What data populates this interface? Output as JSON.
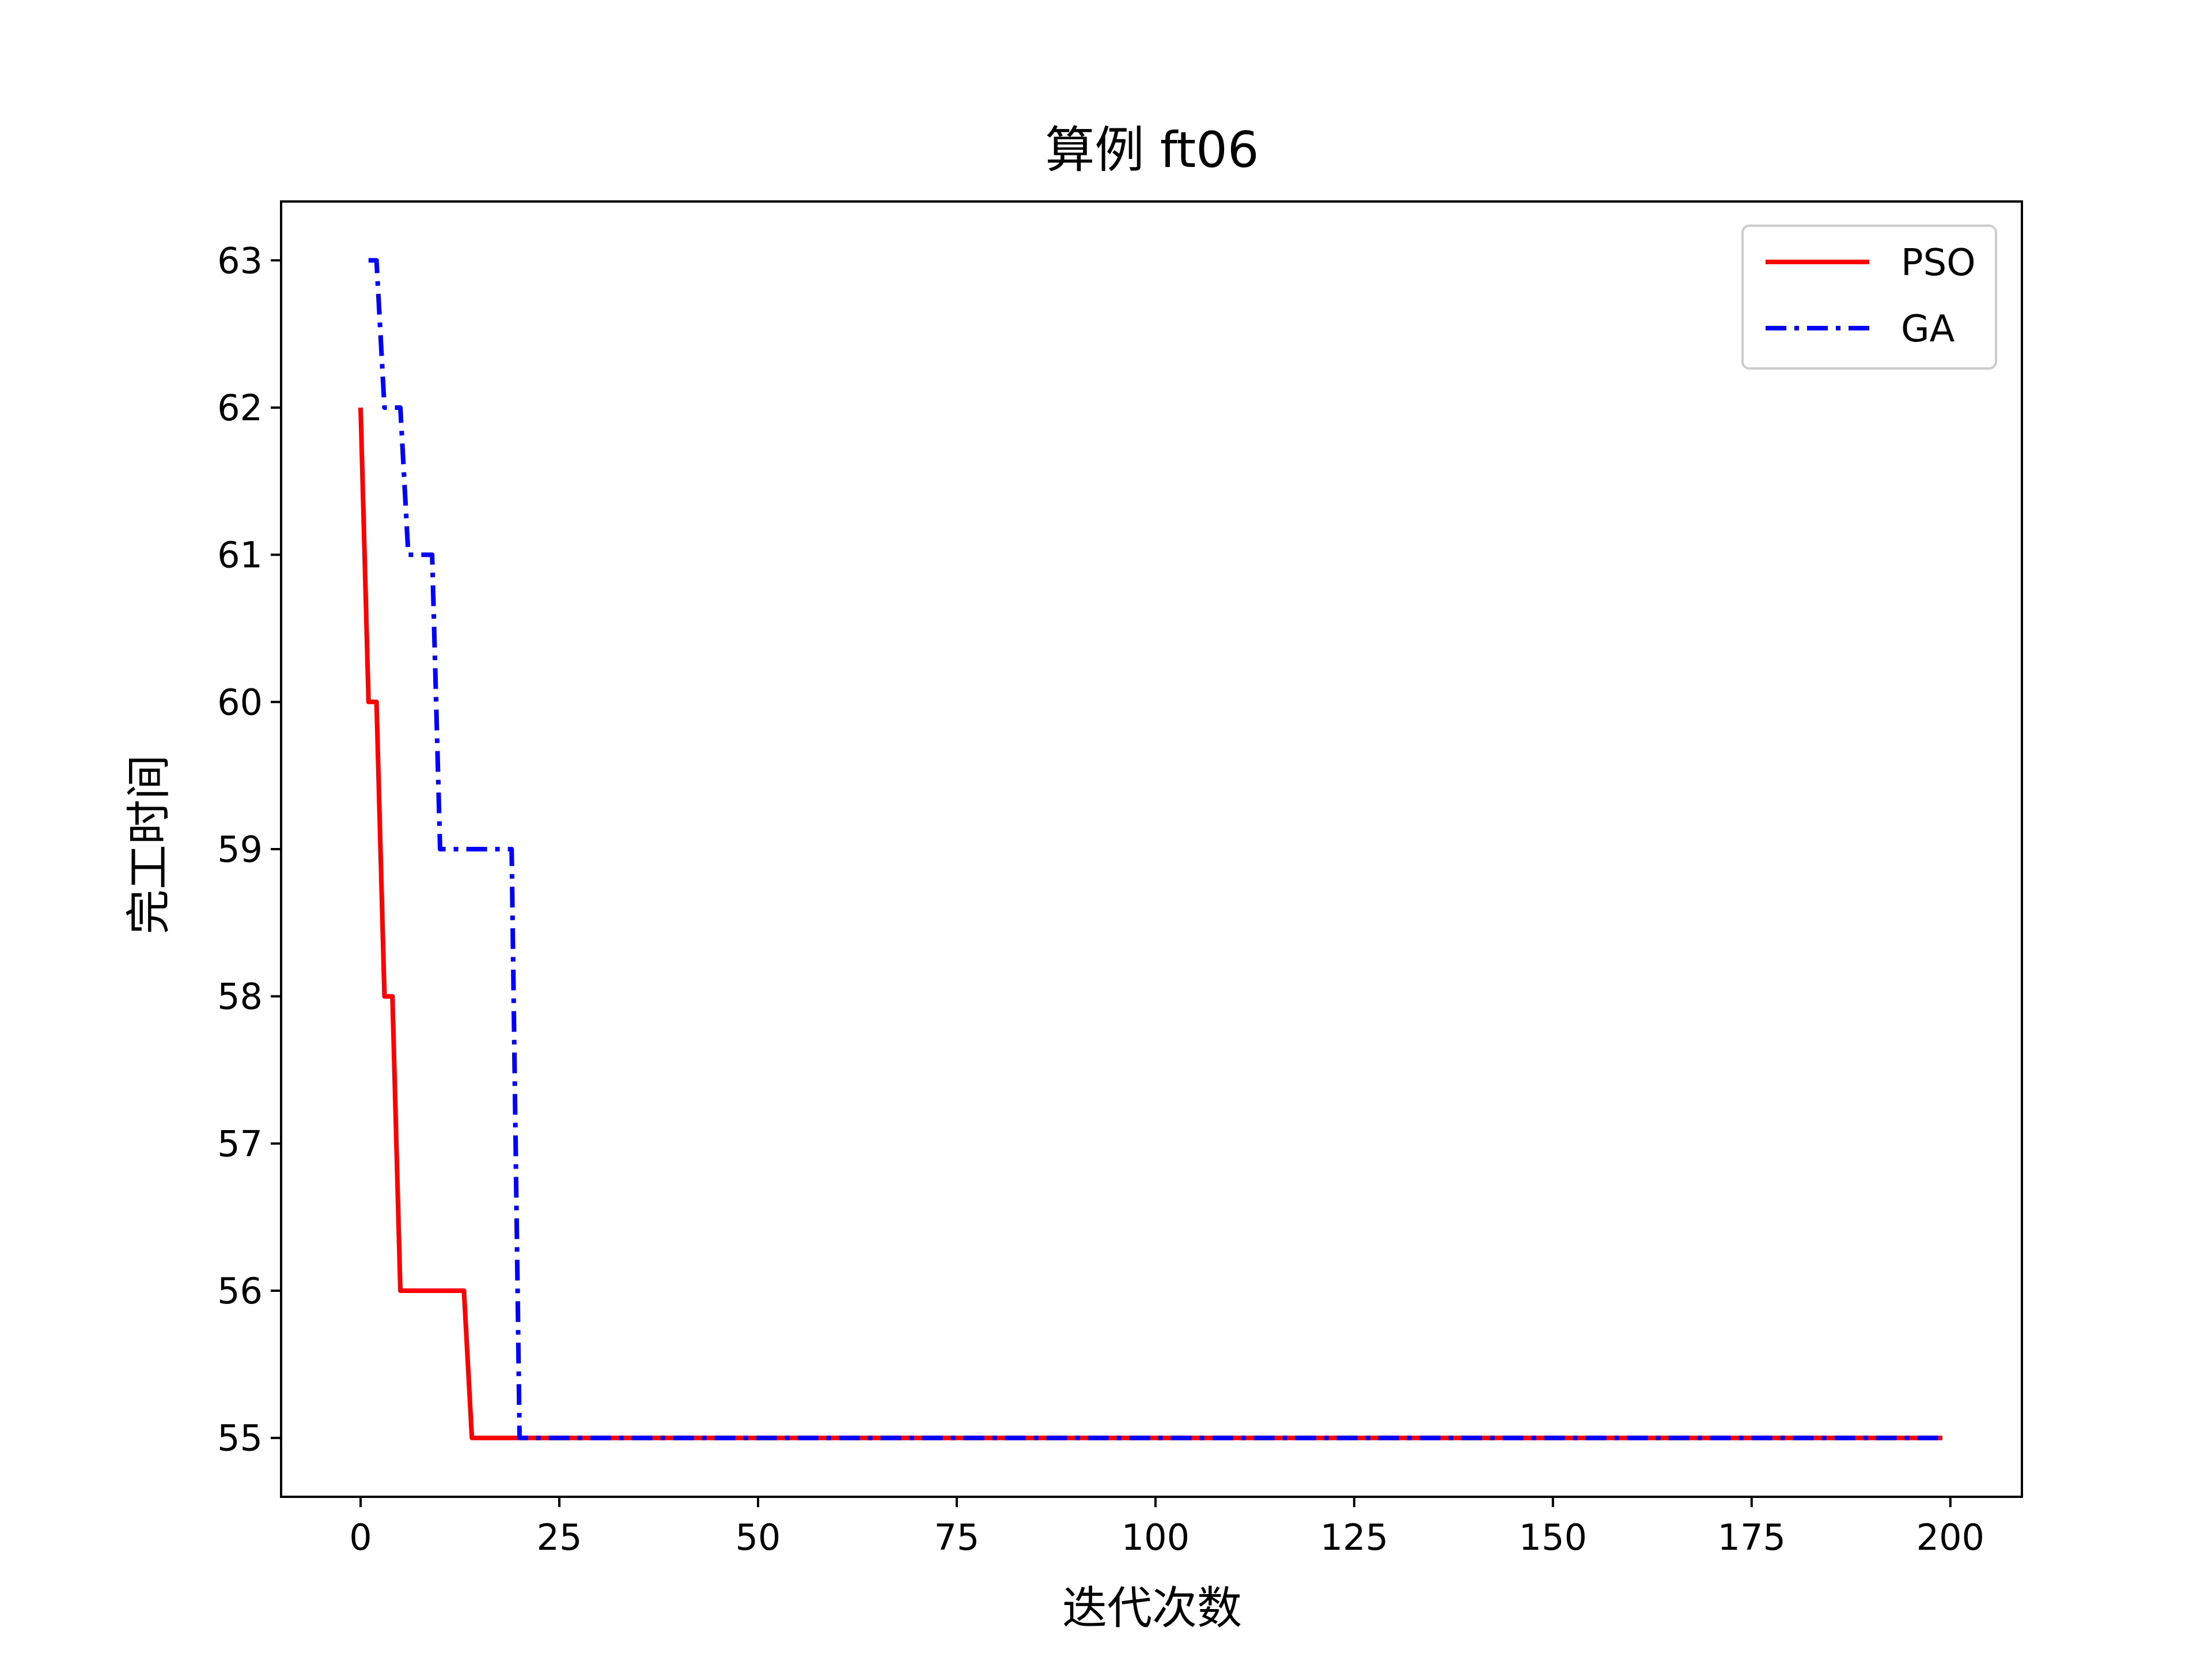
{
  "chart_data": {
    "type": "line",
    "title": "算例 ft06",
    "xlabel": "迭代次数",
    "ylabel": "完工时间",
    "xlim": [
      -10,
      209
    ],
    "ylim": [
      54.6,
      63.4
    ],
    "xticks": [
      0,
      25,
      50,
      75,
      100,
      125,
      150,
      175,
      200
    ],
    "xtick_labels": [
      "0",
      "25",
      "50",
      "75",
      "100",
      "125",
      "150",
      "175",
      "200"
    ],
    "yticks": [
      55,
      56,
      57,
      58,
      59,
      60,
      61,
      62,
      63
    ],
    "ytick_labels": [
      "55",
      "56",
      "57",
      "58",
      "59",
      "60",
      "61",
      "62",
      "63"
    ],
    "grid": false,
    "legend_position": "top-right",
    "series": [
      {
        "name": "PSO",
        "color": "#ff0000",
        "style": "solid",
        "x": [
          0,
          1,
          2,
          3,
          4,
          5,
          6,
          7,
          8,
          9,
          10,
          11,
          12,
          13,
          14,
          199
        ],
        "y": [
          62,
          60,
          60,
          58,
          58,
          56,
          56,
          56,
          56,
          56,
          56,
          56,
          56,
          56,
          55,
          55
        ]
      },
      {
        "name": "GA",
        "color": "#0000ff",
        "style": "dashdot",
        "x": [
          1,
          2,
          3,
          4,
          5,
          6,
          7,
          8,
          9,
          10,
          11,
          12,
          13,
          14,
          15,
          16,
          17,
          18,
          19,
          20,
          199
        ],
        "y": [
          63,
          63,
          62,
          62,
          62,
          61,
          61,
          61,
          61,
          59,
          59,
          59,
          59,
          59,
          59,
          59,
          59,
          59,
          59,
          55,
          55
        ]
      }
    ]
  }
}
